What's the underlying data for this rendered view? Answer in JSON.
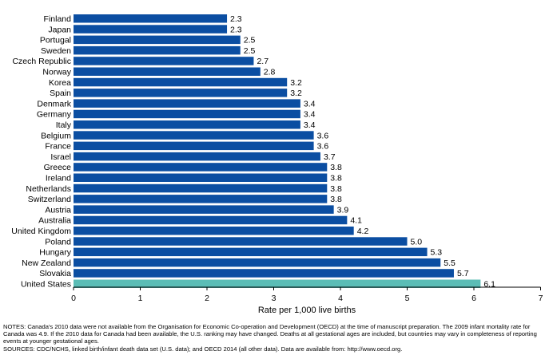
{
  "chart_data": {
    "type": "bar",
    "orientation": "horizontal",
    "categories": [
      "Finland",
      "Japan",
      "Portugal",
      "Sweden",
      "Czech Republic",
      "Norway",
      "Korea",
      "Spain",
      "Denmark",
      "Germany",
      "Italy",
      "Belgium",
      "France",
      "Israel",
      "Greece",
      "Ireland",
      "Netherlands",
      "Switzerland",
      "Austria",
      "Australia",
      "United Kingdom",
      "Poland",
      "Hungary",
      "New Zealand",
      "Slovakia",
      "United States"
    ],
    "values": [
      2.3,
      2.3,
      2.5,
      2.5,
      2.7,
      2.8,
      3.2,
      3.2,
      3.4,
      3.4,
      3.4,
      3.6,
      3.6,
      3.7,
      3.8,
      3.8,
      3.8,
      3.8,
      3.9,
      4.1,
      4.2,
      5.0,
      5.3,
      5.5,
      5.7,
      6.1
    ],
    "value_labels": [
      "2.3",
      "2.3",
      "2.5",
      "2.5",
      "2.7",
      "2.8",
      "3.2",
      "3.2",
      "3.4",
      "3.4",
      "3.4",
      "3.6",
      "3.6",
      "3.7",
      "3.8",
      "3.8",
      "3.8",
      "3.8",
      "3.9",
      "4.1",
      "4.2",
      "5.0",
      "5.3",
      "5.5",
      "5.7",
      "6.1"
    ],
    "highlight_category": "United States",
    "xlabel": "Rate per 1,000 live births",
    "xlim": [
      0,
      7
    ],
    "xticks": [
      "0",
      "1",
      "2",
      "3",
      "4",
      "5",
      "6",
      "7"
    ],
    "grid": false,
    "colors": {
      "bar": "#0b4ea2",
      "highlight": "#5bbdb6",
      "axis": "#000000"
    }
  },
  "notes": {
    "notes_text": "NOTES: Canada's 2010 data were not available from the Organisation for Economic Co-operation and Development (OECD) at the time of manuscript preparation. The 2009 infant mortality rate for Canada was 4.9. If the 2010 data for Canada had been available, the U.S. ranking may have changed. Deaths at all gestational ages are included, but countries may vary in completeness of reporting events at younger gestational ages.",
    "sources_text": "SOURCES: CDC/NCHS, linked birth/infant death data set (U.S. data); and OECD 2014 (all other data). Data are available from: http://www.oecd.org."
  }
}
